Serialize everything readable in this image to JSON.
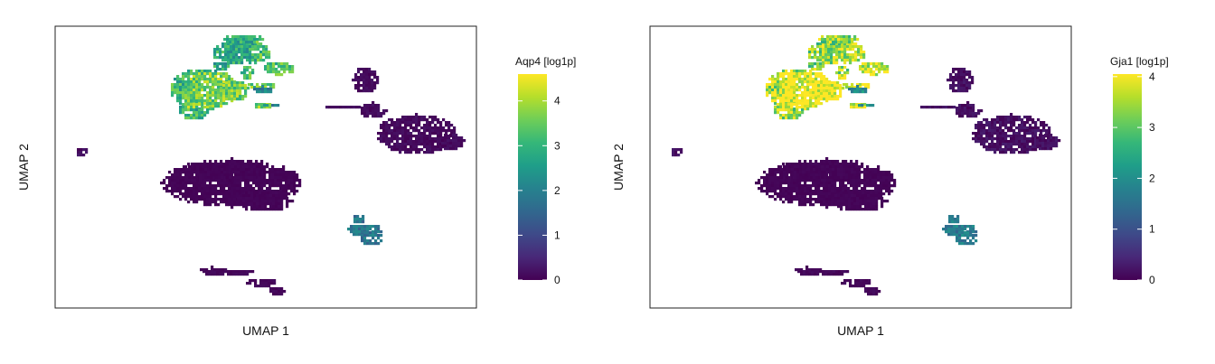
{
  "chart_data": [
    {
      "type": "scatter",
      "title": "",
      "xlabel": "UMAP 1",
      "ylabel": "UMAP 2",
      "colorbar": {
        "title": "Aqp4 [log1p]",
        "ticks": [
          "0",
          "1",
          "2",
          "3",
          "4"
        ],
        "range": [
          0,
          4.6
        ],
        "colormap": "viridis"
      },
      "clusters": [
        {
          "name": "top-upper",
          "level": 2.8
        },
        {
          "name": "top-left",
          "level": 3.0
        },
        {
          "name": "top-small",
          "level": 2.0
        },
        {
          "name": "right",
          "level": 0.15
        },
        {
          "name": "center",
          "level": 0.05
        },
        {
          "name": "small-left",
          "level": 0.2
        },
        {
          "name": "bottom-right",
          "level": 1.8
        },
        {
          "name": "bottom",
          "level": 0.1
        }
      ]
    },
    {
      "type": "scatter",
      "title": "",
      "xlabel": "UMAP 1",
      "ylabel": "UMAP 2",
      "colorbar": {
        "title": "Gja1 [log1p]",
        "ticks": [
          "0",
          "1",
          "2",
          "3",
          "4"
        ],
        "range": [
          0,
          4.05
        ],
        "colormap": "viridis"
      },
      "clusters": [
        {
          "name": "top-upper",
          "level": 3.3
        },
        {
          "name": "top-left",
          "level": 3.5
        },
        {
          "name": "top-small",
          "level": 2.0
        },
        {
          "name": "right",
          "level": 0.2
        },
        {
          "name": "center",
          "level": 0.05
        },
        {
          "name": "small-left",
          "level": 0.2
        },
        {
          "name": "bottom-right",
          "level": 1.7
        },
        {
          "name": "bottom",
          "level": 0.1
        }
      ]
    }
  ]
}
